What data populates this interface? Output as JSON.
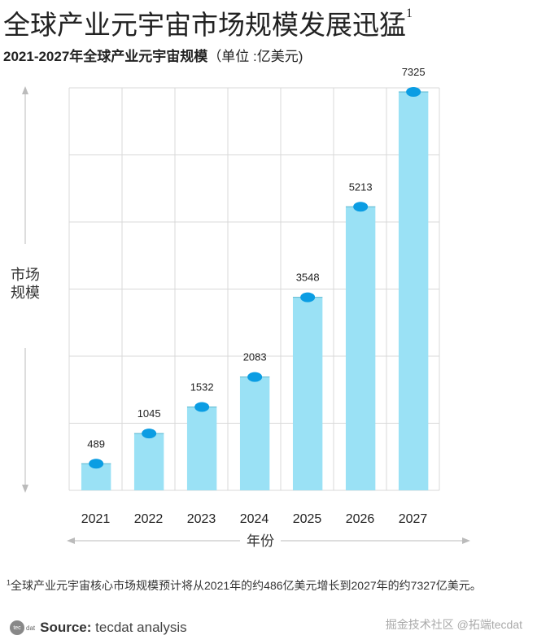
{
  "title": "全球产业元宇宙市场规模发展迅猛",
  "title_footnote_mark": "1",
  "chart_data": {
    "type": "bar",
    "title": "2021-2027年全球产业元宇宙规模",
    "unit": "（单位 :亿美元)",
    "categories": [
      "2021",
      "2022",
      "2023",
      "2024",
      "2025",
      "2026",
      "2027"
    ],
    "values": [
      489,
      1045,
      1532,
      2083,
      3548,
      5213,
      7325
    ],
    "xlabel": "年份",
    "ylabel": "市场\n规模",
    "grid": true,
    "bar_color": "#9ae1f5",
    "marker_color": "#0b9de3"
  },
  "footnote": {
    "mark": "1",
    "text": "全球产业元宇宙核心市场规模预计将从2021年的约486亿美元增长到2027年的约7327亿美元。"
  },
  "source": {
    "logo": "tecdat",
    "label": "Source:",
    "text": " tecdat analysis"
  },
  "watermark": "掘金技术社区 @拓端tecdat"
}
